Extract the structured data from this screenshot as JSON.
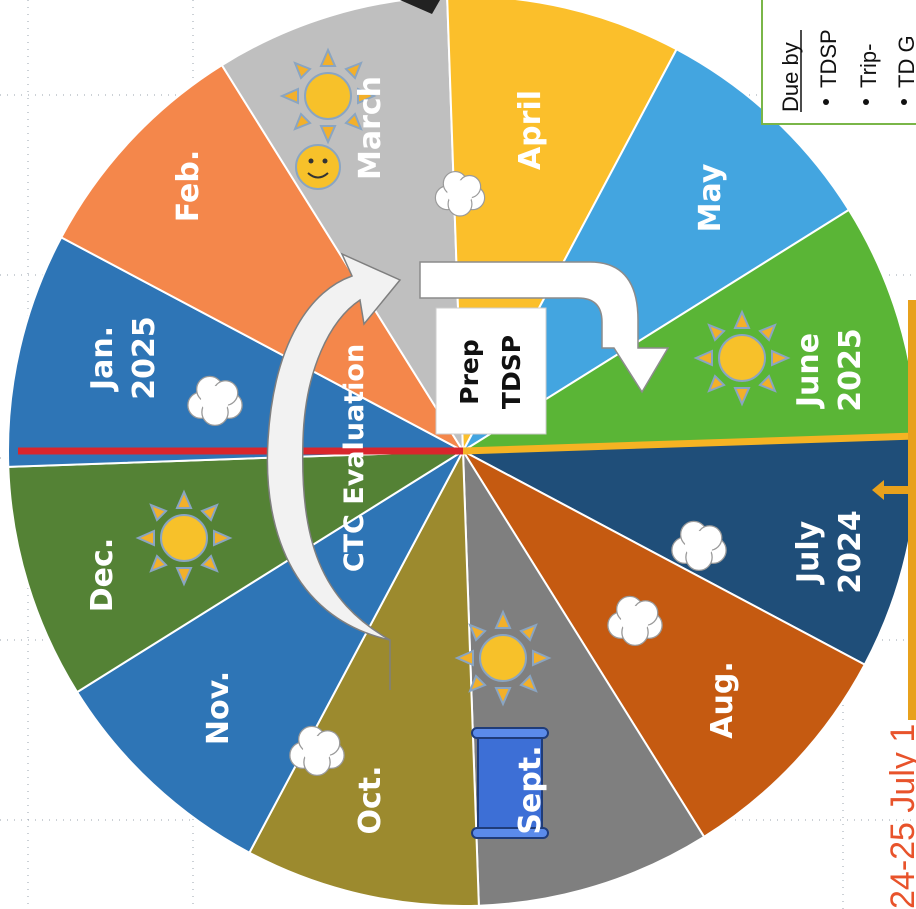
{
  "wheel": {
    "months": [
      {
        "id": "july",
        "lines": [
          "July",
          "2024"
        ],
        "color": "#1f4e79",
        "weather": "cloud"
      },
      {
        "id": "aug",
        "lines": [
          "Aug."
        ],
        "color": "#c55a11",
        "weather": "cloud"
      },
      {
        "id": "sept",
        "lines": [
          "Sept."
        ],
        "color": "#7f7f7f",
        "weather": "sun-and-scroll"
      },
      {
        "id": "oct",
        "lines": [
          "Oct."
        ],
        "color": "#9c8a2e",
        "weather": "cloud"
      },
      {
        "id": "nov",
        "lines": [
          "Nov."
        ],
        "color": "#2e75b6",
        "weather": "none"
      },
      {
        "id": "dec",
        "lines": [
          "Dec."
        ],
        "color": "#548235",
        "weather": "sun"
      },
      {
        "id": "jan",
        "lines": [
          "Jan.",
          "2025"
        ],
        "color": "#2e75b6",
        "weather": "cloud"
      },
      {
        "id": "feb",
        "lines": [
          "Feb."
        ],
        "color": "#f4874b",
        "weather": "none"
      },
      {
        "id": "march",
        "lines": [
          "March"
        ],
        "color": "#bfbfbf",
        "weather": "sun-and-smiley"
      },
      {
        "id": "april",
        "lines": [
          "April"
        ],
        "color": "#fbbf2b",
        "weather": "cloud"
      },
      {
        "id": "may",
        "lines": [
          "May"
        ],
        "color": "#43a5e0",
        "weather": "none"
      },
      {
        "id": "june",
        "lines": [
          "June",
          "2025"
        ],
        "color": "#5ab536",
        "weather": "sun"
      }
    ],
    "evaluation_label": "CTC Evaluation",
    "prep_label": [
      "Prep",
      "TDSP"
    ],
    "divider_colors": {
      "start": "#f5b323",
      "end": "#d9262c"
    }
  },
  "notes": {
    "heading": "Due by",
    "items": [
      "TDSP",
      "Trip-",
      "TD G"
    ]
  },
  "footer_fragment": "24-25  July 1",
  "colors": {
    "sun": "#f7c12a",
    "sun_rays": "#f3b02a",
    "sun_outline": "#8aa5c2",
    "cloud": "#ffffff",
    "arrow": "#f2f2f2",
    "notes_border": "#7ab648",
    "orange_marker": "#e8a11c",
    "footer_text": "#e8532b"
  }
}
